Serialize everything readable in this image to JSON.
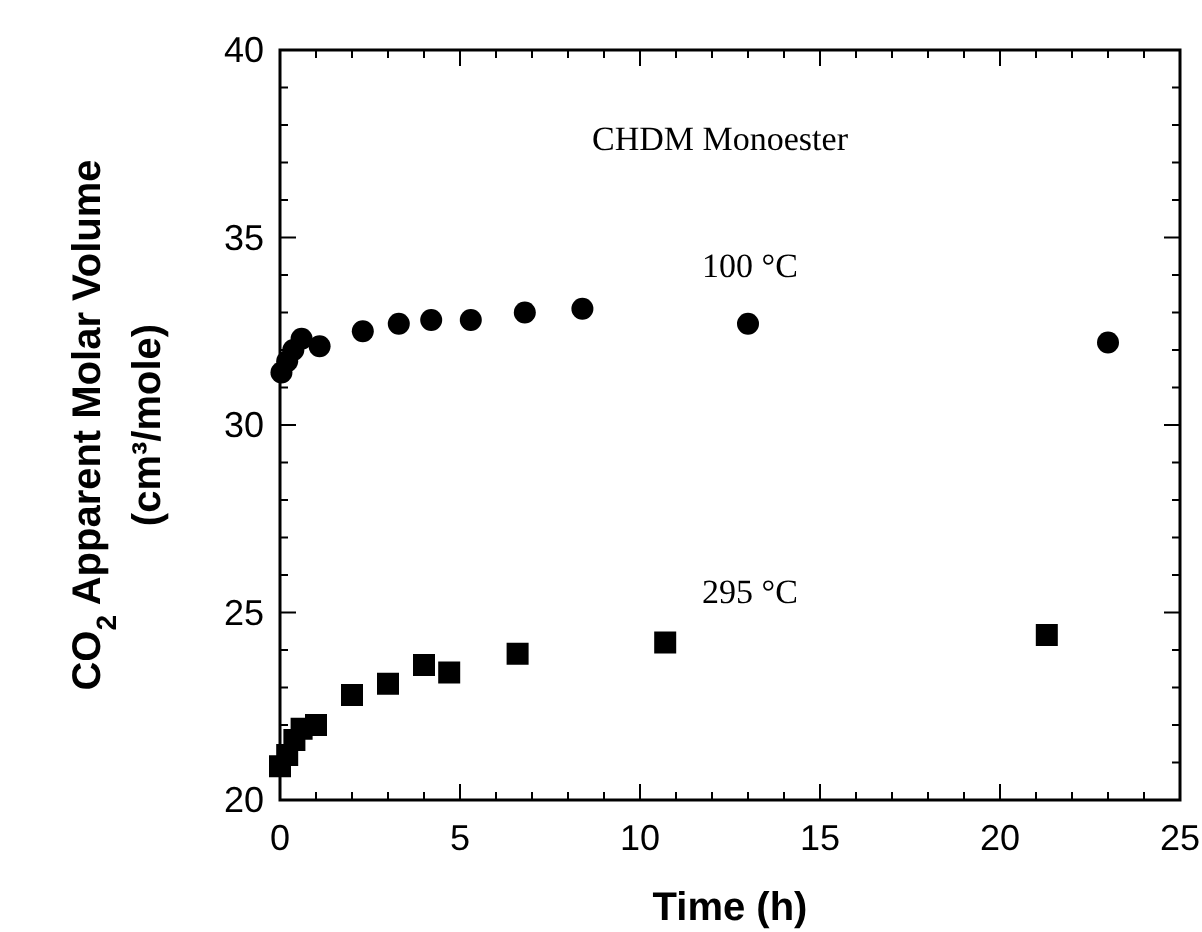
{
  "chart_data": {
    "type": "scatter",
    "xlabel": "Time (h)",
    "ylabel": "CO$_{2}$ Apparent Molar Volume\n(cm³/mole)",
    "annotations": [
      "CHDM Monoester"
    ],
    "xlim": [
      0,
      25
    ],
    "ylim": [
      20,
      40
    ],
    "xticks": [
      0,
      {
        "value": 1,
        "label": null
      },
      {
        "value": 2,
        "label": null
      },
      {
        "value": 3,
        "label": null
      },
      {
        "value": 4,
        "label": null
      },
      5,
      {
        "value": 6,
        "label": null
      },
      {
        "value": 7,
        "label": null
      },
      {
        "value": 8,
        "label": null
      },
      {
        "value": 9,
        "label": null
      },
      10,
      {
        "value": 11,
        "label": null
      },
      {
        "value": 12,
        "label": null
      },
      {
        "value": 13,
        "label": null
      },
      {
        "value": 14,
        "label": null
      },
      15,
      {
        "value": 16,
        "label": null
      },
      {
        "value": 17,
        "label": null
      },
      {
        "value": 18,
        "label": null
      },
      {
        "value": 19,
        "label": null
      },
      20,
      {
        "value": 21,
        "label": null
      },
      {
        "value": 22,
        "label": null
      },
      {
        "value": 23,
        "label": null
      },
      {
        "value": 24,
        "label": null
      },
      25
    ],
    "yticks": [
      20,
      {
        "value": 21,
        "label": null
      },
      {
        "value": 22,
        "label": null
      },
      {
        "value": 23,
        "label": null
      },
      {
        "value": 24,
        "label": null
      },
      25,
      {
        "value": 26,
        "label": null
      },
      {
        "value": 27,
        "label": null
      },
      {
        "value": 28,
        "label": null
      },
      {
        "value": 29,
        "label": null
      },
      30,
      {
        "value": 31,
        "label": null
      },
      {
        "value": 32,
        "label": null
      },
      {
        "value": 33,
        "label": null
      },
      {
        "value": 34,
        "label": null
      },
      35,
      {
        "value": 36,
        "label": null
      },
      {
        "value": 37,
        "label": null
      },
      {
        "value": 38,
        "label": null
      },
      {
        "value": 39,
        "label": null
      },
      40
    ],
    "grid": false,
    "series": [
      {
        "name": "100 °C",
        "color": "#000000",
        "marker": "circle",
        "x": [
          0.04,
          0.2,
          0.37,
          0.6,
          1.1,
          2.3,
          3.3,
          4.2,
          5.3,
          6.8,
          8.4,
          13.0,
          23.0
        ],
        "values": [
          31.4,
          31.7,
          32.0,
          32.3,
          32.1,
          32.5,
          32.7,
          32.8,
          32.8,
          33.0,
          33.1,
          32.7,
          32.2
        ]
      },
      {
        "name": "295 °C",
        "color": "#000000",
        "marker": "square",
        "x": [
          0,
          0.2,
          0.4,
          0.6,
          1.0,
          2.0,
          3.0,
          4.0,
          4.7,
          6.6,
          10.7,
          21.3
        ],
        "values": [
          20.9,
          21.2,
          21.6,
          21.9,
          22.0,
          22.8,
          23.1,
          23.6,
          23.4,
          23.9,
          24.2,
          24.4
        ]
      }
    ]
  }
}
